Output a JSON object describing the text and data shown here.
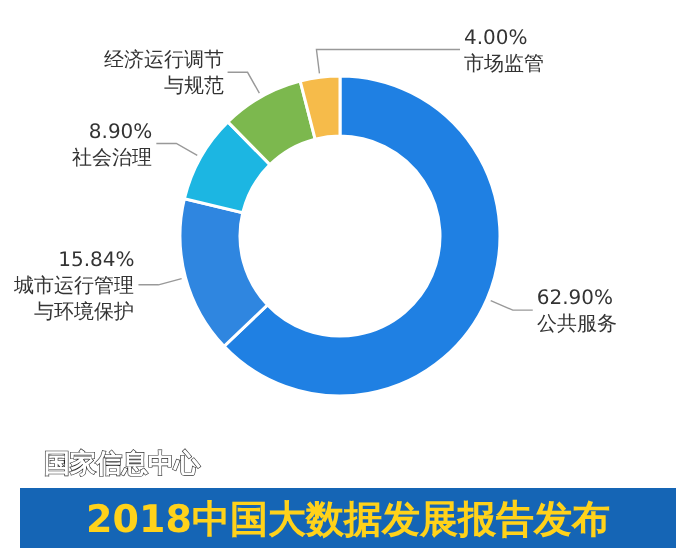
{
  "chart_data": {
    "type": "donut",
    "title": "2018中国大数据发展报告发布",
    "annotations": [
      "国家信息中心"
    ],
    "categories": [
      "公共服务",
      "城市运行管理与环境保护",
      "社会治理",
      "经济运行调节与规范",
      "市场监管"
    ],
    "values": [
      62.9,
      15.84,
      8.9,
      8.36,
      4.0
    ],
    "value_labels": [
      "62.90%",
      "15.84%",
      "8.90%",
      null,
      "4.00%"
    ],
    "colors": [
      "#1f80e3",
      "#2f86e0",
      "#1cb6e2",
      "#7cb84e",
      "#f6bb4a"
    ]
  }
}
